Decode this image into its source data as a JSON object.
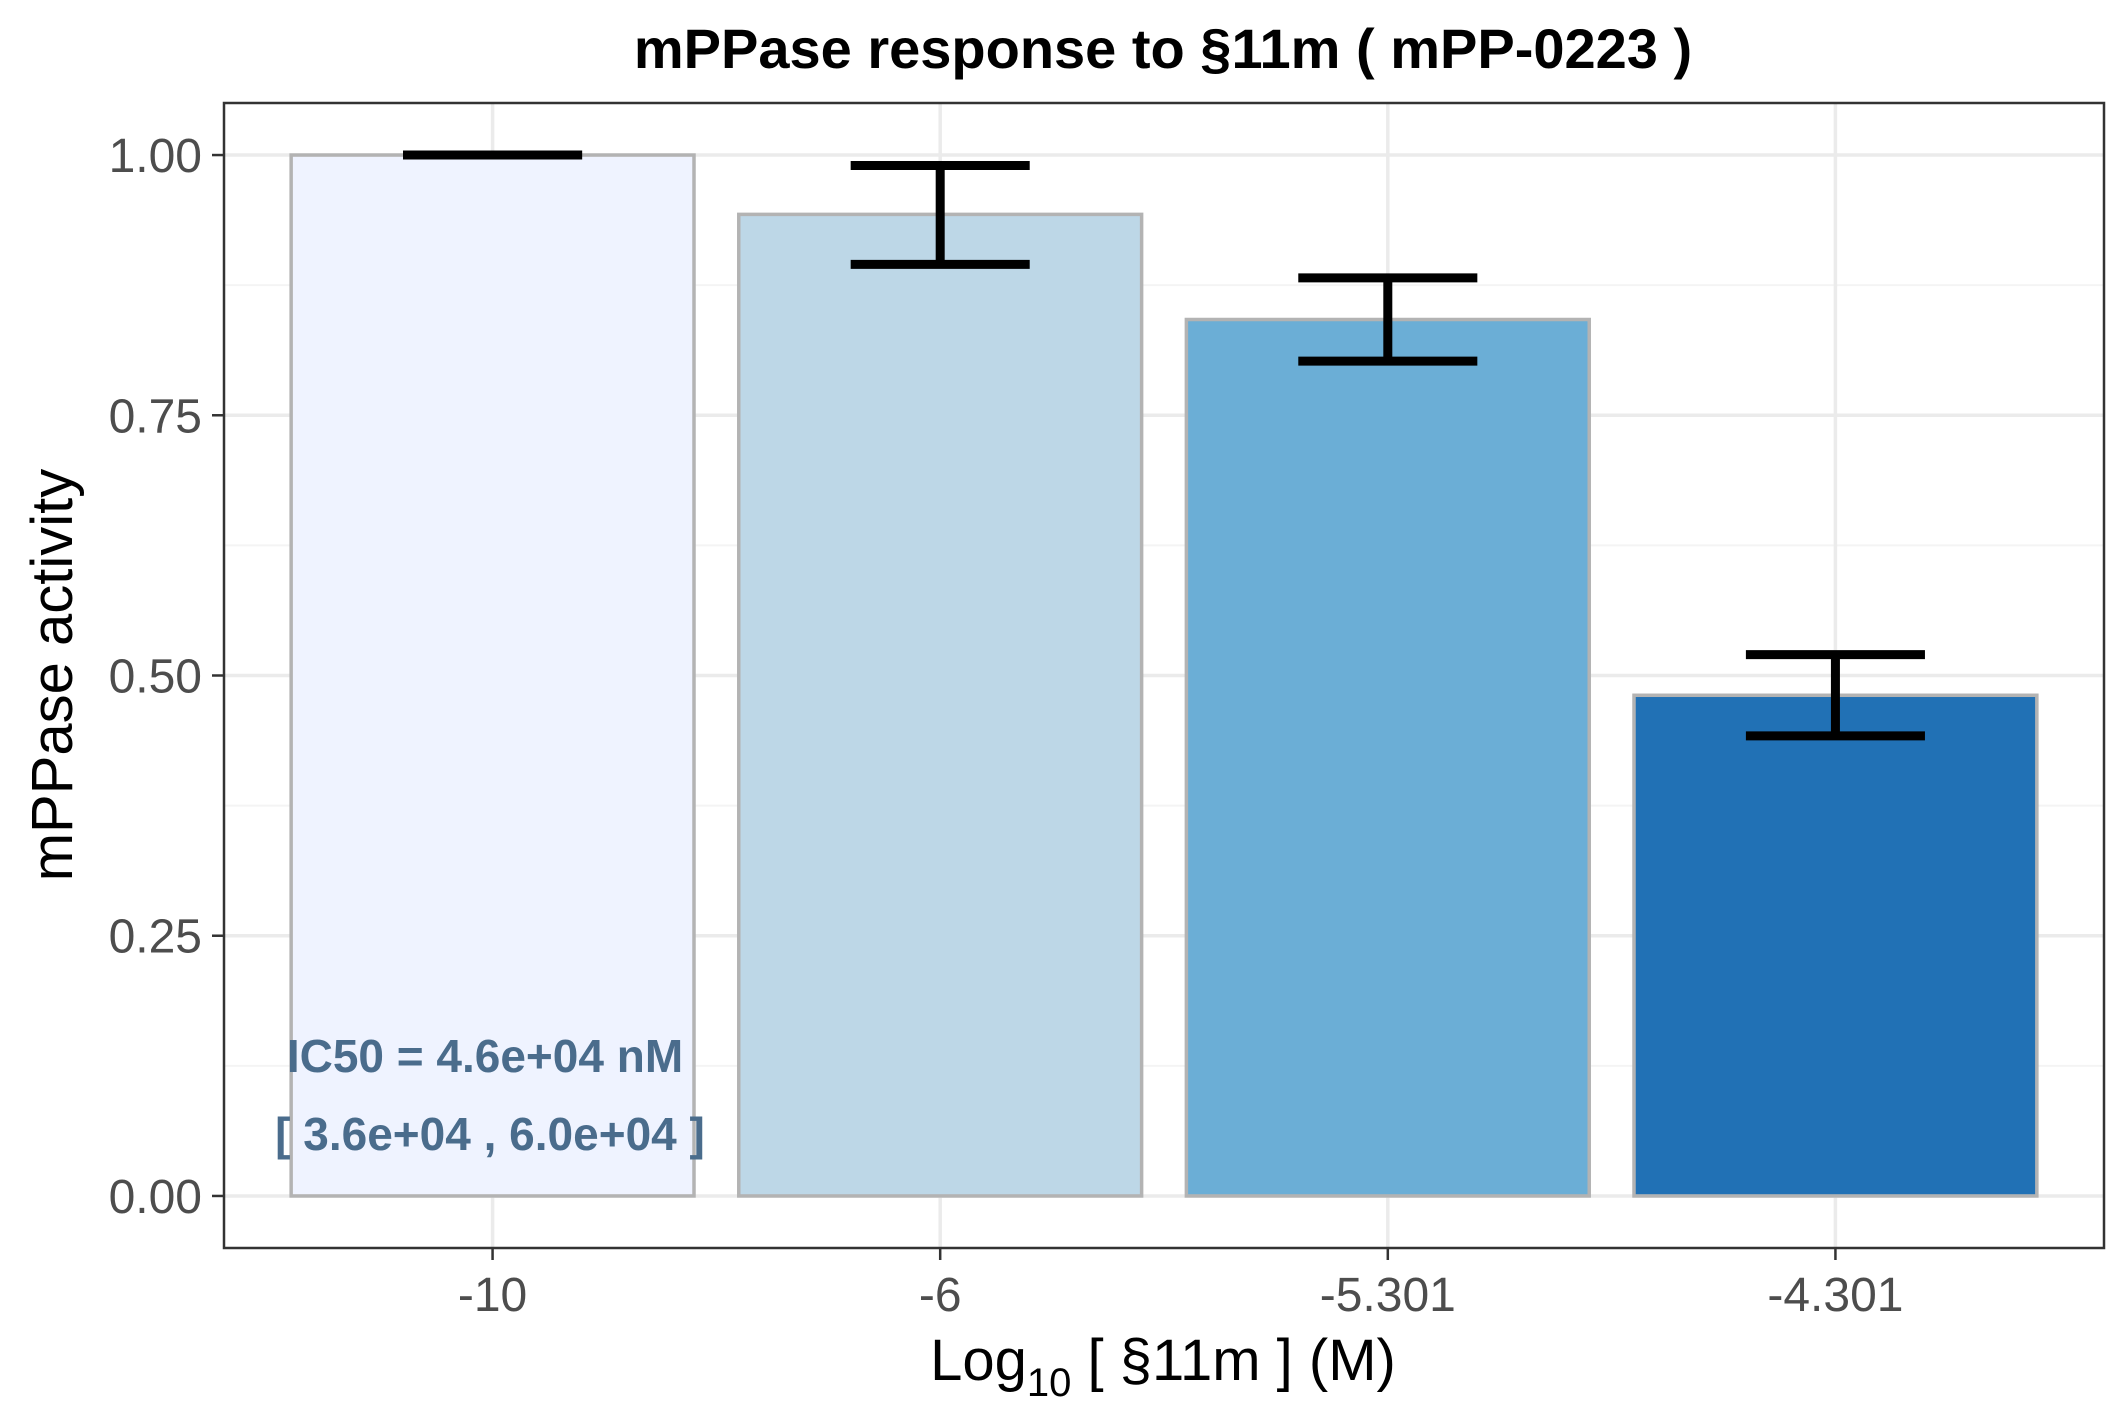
{
  "chart_data": {
    "type": "bar",
    "title": "mPPase response to §11m ( mPP-0223 )",
    "xlabel_main": "Log",
    "xlabel_sub": "10",
    "xlabel_rest": " [ §11m ] (M)",
    "ylabel": "mPPase activity",
    "categories": [
      "-10",
      "-6",
      "-5.301",
      "-4.301"
    ],
    "values": [
      1.0,
      0.943,
      0.842,
      0.481
    ],
    "error_low": [
      1.0,
      0.895,
      0.802,
      0.442
    ],
    "error_high": [
      1.0,
      0.99,
      0.882,
      0.52
    ],
    "colors": [
      "#eff3ff",
      "#bdd7e7",
      "#6baed6",
      "#2171b5"
    ],
    "ylim": [
      -0.05,
      1.05
    ],
    "yticks": [
      0.0,
      0.25,
      0.5,
      0.75,
      1.0
    ],
    "ytick_labels": [
      "0.00",
      "0.25",
      "0.50",
      "0.75",
      "1.00"
    ],
    "grid": true,
    "annotation": {
      "line1": "IC50 = 4.6e+04 nM",
      "line2": "[ 3.6e+04 , 6.0e+04 ]"
    }
  }
}
